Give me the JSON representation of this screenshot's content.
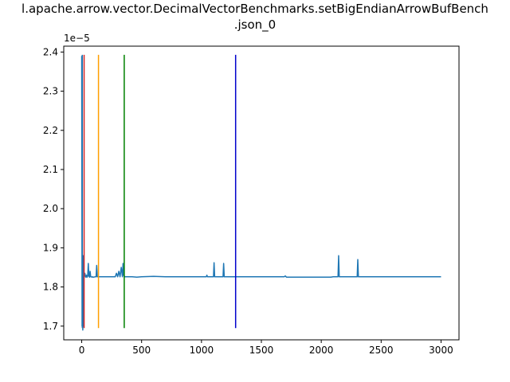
{
  "chart_data": {
    "type": "line",
    "title_line1": "l.apache.arrow.vector.DecimalVectorBenchmarks.setBigEndianArrowBufBench",
    "title_line2": ".json_0",
    "y_offset_label": "1e−5",
    "y_scale": 1e-05,
    "xlim": [
      -150,
      3150
    ],
    "ylim": [
      1.665,
      2.415
    ],
    "x_ticks": [
      0,
      500,
      1000,
      1500,
      2000,
      2500,
      3000
    ],
    "x_tick_labels": [
      "0",
      "500",
      "1000",
      "1500",
      "2000",
      "2500",
      "3000"
    ],
    "y_ticks": [
      1.7,
      1.8,
      1.9,
      2.0,
      2.1,
      2.2,
      2.3,
      2.4
    ],
    "y_tick_labels": [
      "1.7",
      "1.8",
      "1.9",
      "2.0",
      "2.1",
      "2.2",
      "2.3",
      "2.4"
    ],
    "grid": false,
    "series": [
      {
        "color": "#1f77b4",
        "x": [
          0,
          3,
          6,
          9,
          12,
          15,
          18,
          22,
          26,
          30,
          35,
          40,
          45,
          50,
          55,
          60,
          65,
          70,
          75,
          80,
          85,
          90,
          95,
          100,
          110,
          120,
          125,
          130,
          140,
          160,
          200,
          250,
          280,
          290,
          300,
          310,
          320,
          330,
          340,
          345,
          350,
          360,
          380,
          420,
          460,
          500,
          600,
          700,
          800,
          900,
          1000,
          1040,
          1045,
          1050,
          1100,
          1105,
          1110,
          1150,
          1180,
          1185,
          1190,
          1250,
          1300,
          1400,
          1500,
          1600,
          1690,
          1700,
          1710,
          1800,
          1900,
          2000,
          2080,
          2100,
          2140,
          2145,
          2150,
          2200,
          2290,
          2300,
          2305,
          2310,
          2400,
          2500,
          2600,
          2700,
          2800,
          2900,
          3000
        ],
        "y": [
          2.39,
          1.7,
          1.83,
          1.69,
          1.88,
          1.7,
          1.83,
          1.825,
          1.835,
          1.83,
          1.825,
          1.83,
          1.825,
          1.828,
          1.86,
          1.828,
          1.825,
          1.84,
          1.826,
          1.826,
          1.825,
          1.826,
          1.825,
          1.825,
          1.826,
          1.826,
          1.855,
          1.826,
          1.826,
          1.826,
          1.826,
          1.826,
          1.826,
          1.835,
          1.826,
          1.84,
          1.826,
          1.85,
          1.826,
          1.86,
          1.83,
          1.826,
          1.826,
          1.826,
          1.825,
          1.826,
          1.827,
          1.826,
          1.826,
          1.826,
          1.826,
          1.826,
          1.83,
          1.826,
          1.826,
          1.862,
          1.826,
          1.826,
          1.826,
          1.86,
          1.826,
          1.826,
          1.826,
          1.826,
          1.826,
          1.826,
          1.826,
          1.828,
          1.825,
          1.825,
          1.825,
          1.825,
          1.825,
          1.826,
          1.826,
          1.88,
          1.826,
          1.826,
          1.826,
          1.826,
          1.87,
          1.826,
          1.826,
          1.826,
          1.826,
          1.826,
          1.826,
          1.826,
          1.826
        ]
      }
    ],
    "vertical_lines": [
      {
        "x": 5,
        "color": "#1f77b4"
      },
      {
        "x": 20,
        "color": "#d62728"
      },
      {
        "x": 140,
        "color": "#ff9f00"
      },
      {
        "x": 355,
        "color": "#008000"
      },
      {
        "x": 1285,
        "color": "#0000cc"
      }
    ],
    "vline_range": [
      1.695,
      2.393
    ]
  }
}
